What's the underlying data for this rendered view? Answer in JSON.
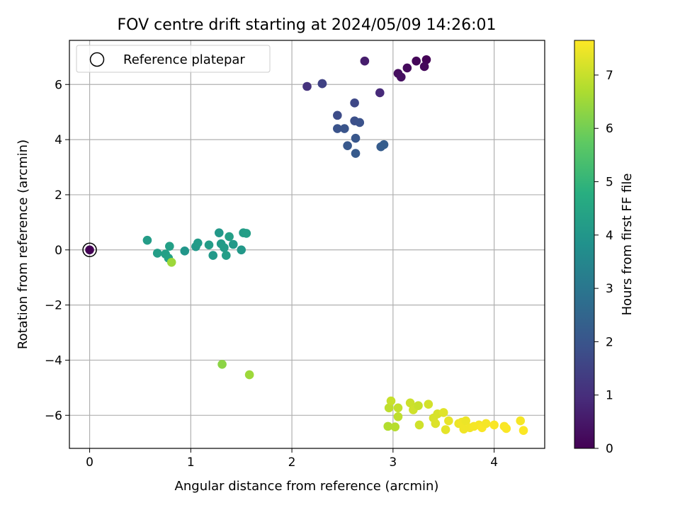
{
  "chart_data": {
    "type": "scatter",
    "title": "FOV centre drift starting at 2024/05/09 14:26:01",
    "xlabel": "Angular distance from reference (arcmin)",
    "ylabel": "Rotation from reference (arcmin)",
    "xlim": [
      -0.2,
      4.5
    ],
    "ylim": [
      -7.2,
      7.6
    ],
    "xticks": [
      0,
      1,
      2,
      3,
      4
    ],
    "yticks": [
      -6,
      -4,
      -2,
      0,
      2,
      4,
      6
    ],
    "grid": true,
    "legend": {
      "placement": "top-left",
      "entries": [
        {
          "label": "Reference platepar",
          "marker": "open-circle"
        }
      ]
    },
    "reference_point": {
      "x": 0,
      "y": 0
    },
    "colorbar": {
      "label": "Hours from first FF file",
      "colormap": "viridis",
      "range": [
        0,
        7.65
      ],
      "ticks": [
        0,
        1,
        2,
        3,
        4,
        5,
        6,
        7
      ]
    },
    "points": [
      {
        "x": 0.0,
        "y": 0.0,
        "c": 0.0
      },
      {
        "x": 3.33,
        "y": 6.9,
        "c": 0.05
      },
      {
        "x": 3.23,
        "y": 6.85,
        "c": 0.1
      },
      {
        "x": 3.31,
        "y": 6.65,
        "c": 0.15
      },
      {
        "x": 3.14,
        "y": 6.6,
        "c": 0.2
      },
      {
        "x": 3.05,
        "y": 6.4,
        "c": 0.25
      },
      {
        "x": 3.08,
        "y": 6.27,
        "c": 0.3
      },
      {
        "x": 2.72,
        "y": 6.85,
        "c": 0.6
      },
      {
        "x": 2.87,
        "y": 5.7,
        "c": 0.9
      },
      {
        "x": 2.15,
        "y": 5.93,
        "c": 1.1
      },
      {
        "x": 2.3,
        "y": 6.03,
        "c": 1.4
      },
      {
        "x": 2.3,
        "y": 6.03,
        "c": 1.5
      },
      {
        "x": 2.62,
        "y": 5.33,
        "c": 1.65
      },
      {
        "x": 2.45,
        "y": 4.88,
        "c": 1.75
      },
      {
        "x": 2.62,
        "y": 4.68,
        "c": 1.85
      },
      {
        "x": 2.67,
        "y": 4.62,
        "c": 1.9
      },
      {
        "x": 2.45,
        "y": 4.4,
        "c": 1.95
      },
      {
        "x": 2.52,
        "y": 4.4,
        "c": 2.0
      },
      {
        "x": 2.63,
        "y": 4.05,
        "c": 2.05
      },
      {
        "x": 2.55,
        "y": 3.78,
        "c": 2.1
      },
      {
        "x": 2.63,
        "y": 3.5,
        "c": 2.15
      },
      {
        "x": 2.88,
        "y": 3.74,
        "c": 2.2
      },
      {
        "x": 2.91,
        "y": 3.82,
        "c": 2.25
      },
      {
        "x": 0.57,
        "y": 0.35,
        "c": 4.2
      },
      {
        "x": 0.67,
        "y": -0.12,
        "c": 4.25
      },
      {
        "x": 0.75,
        "y": -0.15,
        "c": 4.3
      },
      {
        "x": 0.79,
        "y": 0.13,
        "c": 4.3
      },
      {
        "x": 0.78,
        "y": -0.3,
        "c": 4.35
      },
      {
        "x": 0.94,
        "y": -0.04,
        "c": 4.0
      },
      {
        "x": 1.05,
        "y": 0.12,
        "c": 4.1
      },
      {
        "x": 1.07,
        "y": 0.25,
        "c": 4.15
      },
      {
        "x": 1.18,
        "y": 0.18,
        "c": 4.2
      },
      {
        "x": 1.22,
        "y": -0.2,
        "c": 4.1
      },
      {
        "x": 1.28,
        "y": 0.62,
        "c": 4.05
      },
      {
        "x": 1.3,
        "y": 0.22,
        "c": 4.15
      },
      {
        "x": 1.33,
        "y": 0.08,
        "c": 4.2
      },
      {
        "x": 1.35,
        "y": -0.2,
        "c": 4.25
      },
      {
        "x": 1.38,
        "y": 0.48,
        "c": 4.3
      },
      {
        "x": 1.42,
        "y": 0.2,
        "c": 4.1
      },
      {
        "x": 1.5,
        "y": 0.0,
        "c": 4.05
      },
      {
        "x": 1.52,
        "y": 0.62,
        "c": 4.2
      },
      {
        "x": 1.55,
        "y": 0.6,
        "c": 4.25
      },
      {
        "x": 0.81,
        "y": -0.45,
        "c": 6.5
      },
      {
        "x": 1.31,
        "y": -4.15,
        "c": 6.3
      },
      {
        "x": 1.58,
        "y": -4.53,
        "c": 6.5
      },
      {
        "x": 2.95,
        "y": -6.4,
        "c": 6.75
      },
      {
        "x": 3.02,
        "y": -6.42,
        "c": 6.8
      },
      {
        "x": 2.96,
        "y": -5.73,
        "c": 6.9
      },
      {
        "x": 2.98,
        "y": -5.48,
        "c": 7.0
      },
      {
        "x": 3.05,
        "y": -5.73,
        "c": 6.95
      },
      {
        "x": 3.05,
        "y": -6.05,
        "c": 6.9
      },
      {
        "x": 3.17,
        "y": -5.55,
        "c": 7.05
      },
      {
        "x": 3.2,
        "y": -5.8,
        "c": 7.1
      },
      {
        "x": 3.25,
        "y": -5.65,
        "c": 7.0
      },
      {
        "x": 3.26,
        "y": -6.35,
        "c": 7.1
      },
      {
        "x": 3.35,
        "y": -5.6,
        "c": 7.15
      },
      {
        "x": 3.4,
        "y": -6.1,
        "c": 7.2
      },
      {
        "x": 3.42,
        "y": -6.3,
        "c": 7.25
      },
      {
        "x": 3.44,
        "y": -5.95,
        "c": 7.2
      },
      {
        "x": 3.5,
        "y": -5.9,
        "c": 7.3
      },
      {
        "x": 3.52,
        "y": -6.52,
        "c": 7.35
      },
      {
        "x": 3.55,
        "y": -6.2,
        "c": 7.4
      },
      {
        "x": 3.65,
        "y": -6.3,
        "c": 7.45
      },
      {
        "x": 3.68,
        "y": -6.25,
        "c": 7.5
      },
      {
        "x": 3.7,
        "y": -6.5,
        "c": 7.5
      },
      {
        "x": 3.72,
        "y": -6.2,
        "c": 7.45
      },
      {
        "x": 3.76,
        "y": -6.45,
        "c": 7.5
      },
      {
        "x": 3.8,
        "y": -6.4,
        "c": 7.55
      },
      {
        "x": 3.85,
        "y": -6.35,
        "c": 7.55
      },
      {
        "x": 3.88,
        "y": -6.45,
        "c": 7.6
      },
      {
        "x": 3.92,
        "y": -6.3,
        "c": 7.55
      },
      {
        "x": 4.0,
        "y": -6.35,
        "c": 7.6
      },
      {
        "x": 4.1,
        "y": -6.4,
        "c": 7.6
      },
      {
        "x": 4.12,
        "y": -6.48,
        "c": 7.62
      },
      {
        "x": 4.26,
        "y": -6.2,
        "c": 7.55
      },
      {
        "x": 4.29,
        "y": -6.55,
        "c": 7.63
      }
    ]
  }
}
